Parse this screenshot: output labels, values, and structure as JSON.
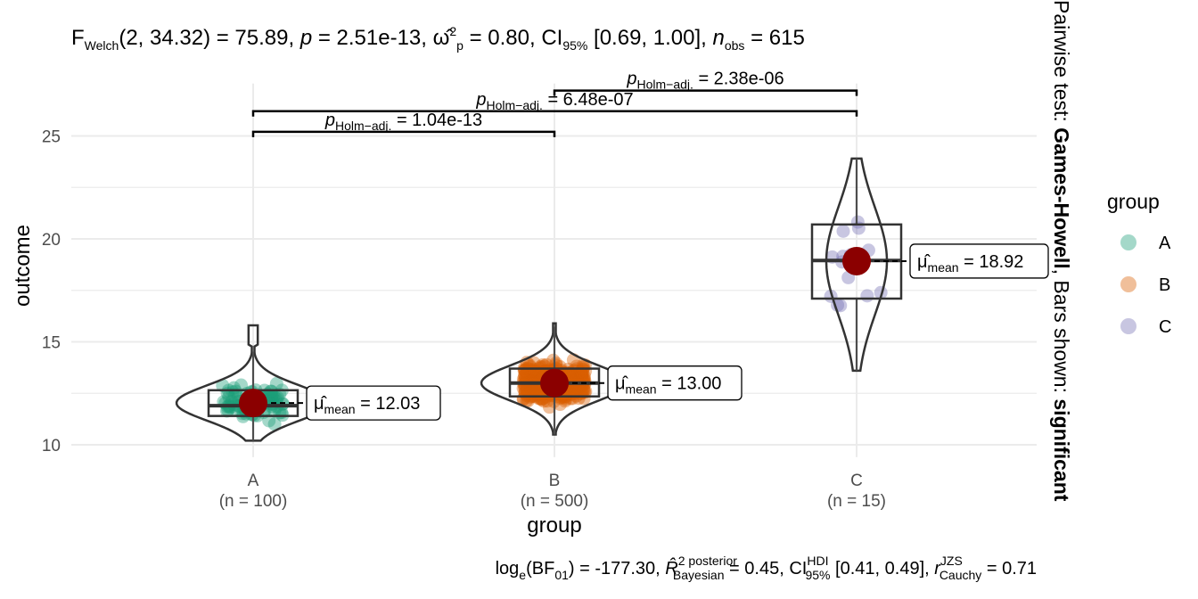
{
  "chart_data": {
    "type": "violin",
    "title": "F_Welch(2, 34.32) = 75.89, p = 2.51e-13, ω̂²p = 0.80, CI95% [0.69, 1.00], n_obs = 615",
    "subtitle": "log_e(BF01) = -177.30, R̂² posterior Bayesian = 0.45, CI HDI 95% [0.41, 0.49], r JZS Cauchy = 0.71",
    "side_caption": {
      "prefix": "Pairwise test: ",
      "test": "Games-Howell",
      "middle": ", Bars shown: ",
      "shown": "significant"
    },
    "xlabel": "group",
    "ylabel": "outcome",
    "ylim": [
      9.4,
      27.2
    ],
    "yticks": [
      10,
      15,
      20,
      25
    ],
    "grid": true,
    "legend": {
      "title": "group",
      "position": "right",
      "items": [
        "A",
        "B",
        "C"
      ]
    },
    "categories": [
      "A",
      "B",
      "C"
    ],
    "category_counts": [
      "(n = 100)",
      "(n = 500)",
      "(n = 15)"
    ],
    "means": [
      12.03,
      13.0,
      18.92
    ],
    "mean_labels": [
      "12.03",
      "13.00",
      "18.92"
    ],
    "boxes": [
      {
        "q1": 11.4,
        "median": 11.9,
        "q3": 12.65,
        "min": 10.2,
        "max": 15.8
      },
      {
        "q1": 12.35,
        "median": 13.0,
        "q3": 13.7,
        "min": 10.5,
        "max": 15.9
      },
      {
        "q1": 17.1,
        "median": 18.95,
        "q3": 20.7,
        "min": 13.6,
        "max": 23.9
      }
    ],
    "comparisons": [
      {
        "from": "A",
        "to": "B",
        "p_label": "1.04e-13",
        "y": 25.2
      },
      {
        "from": "A",
        "to": "C",
        "p_label": "6.48e-07",
        "y": 26.2
      },
      {
        "from": "B",
        "to": "C",
        "p_label": "2.38e-06",
        "y": 27.2
      }
    ],
    "colors": {
      "A": "#1b9e77",
      "B": "#d95f02",
      "C": "#7570b3",
      "mean_point": "#8b0000"
    }
  }
}
